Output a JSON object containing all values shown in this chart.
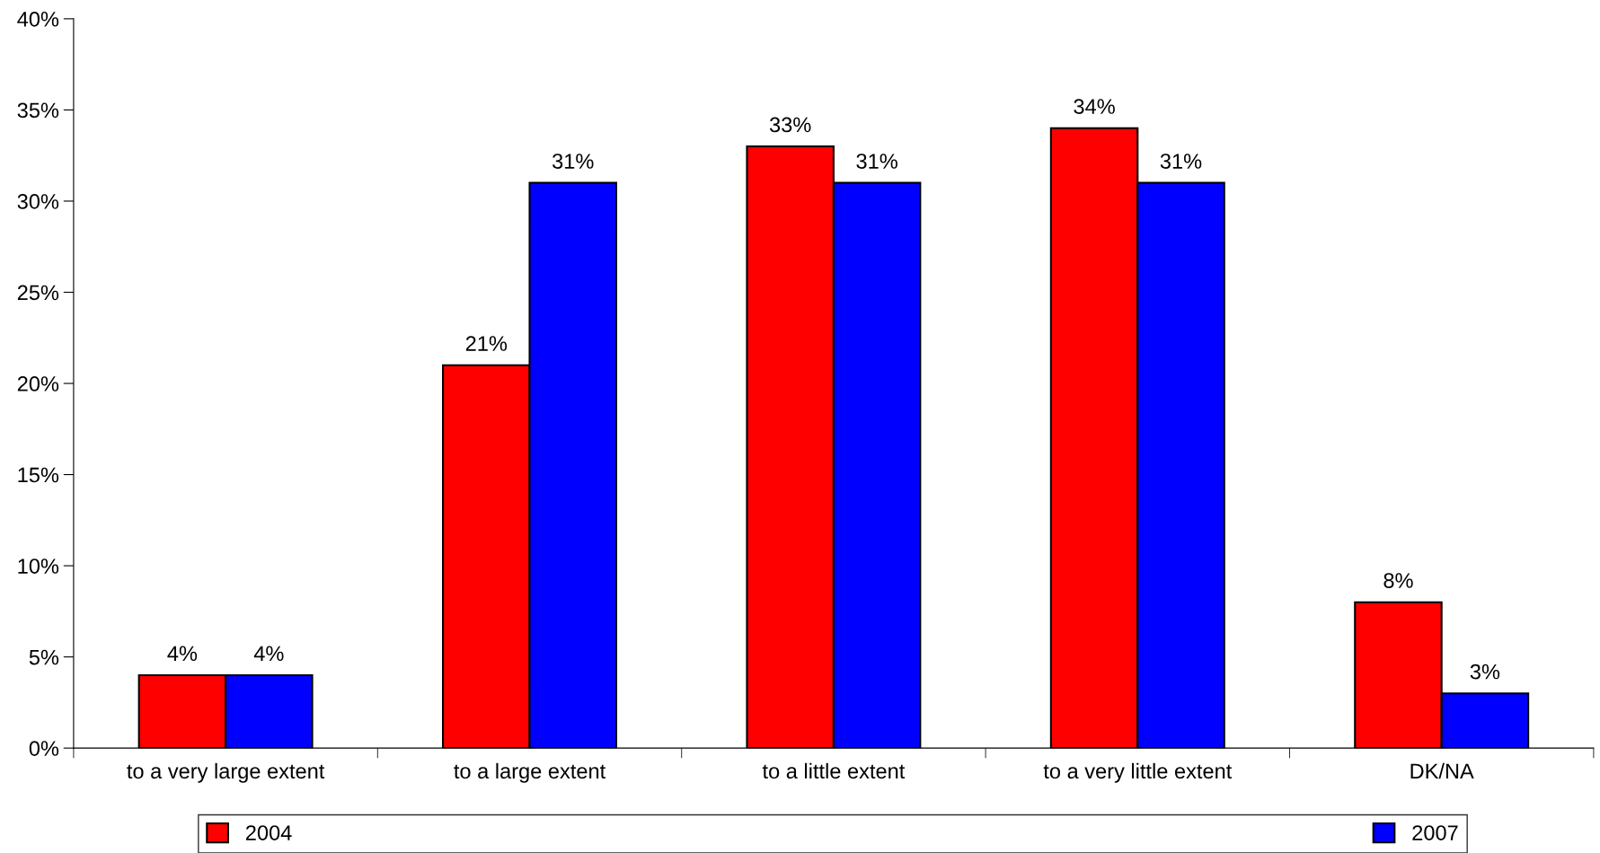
{
  "chart_data": {
    "type": "bar",
    "categories": [
      "to a very large extent",
      "to a large extent",
      "to a little extent",
      "to a very little extent",
      "DK/NA"
    ],
    "series": [
      {
        "name": "2004",
        "color": "#ff0000",
        "values": [
          4,
          21,
          33,
          34,
          8
        ],
        "value_labels": [
          "4%",
          "21%",
          "33%",
          "34%",
          "8%"
        ]
      },
      {
        "name": "2007",
        "color": "#0000ff",
        "values": [
          4,
          31,
          31,
          31,
          3
        ],
        "value_labels": [
          "4%",
          "31%",
          "31%",
          "31%",
          "3%"
        ]
      }
    ],
    "ylim": [
      0,
      40
    ],
    "yticks": [
      {
        "value": 0,
        "label": "0%"
      },
      {
        "value": 5,
        "label": "5%"
      },
      {
        "value": 10,
        "label": "10%"
      },
      {
        "value": 15,
        "label": "15%"
      },
      {
        "value": 20,
        "label": "20%"
      },
      {
        "value": 25,
        "label": "25%"
      },
      {
        "value": 30,
        "label": "30%"
      },
      {
        "value": 35,
        "label": "35%"
      },
      {
        "value": 40,
        "label": "40%"
      }
    ],
    "grid": false,
    "legend": "bottom"
  }
}
